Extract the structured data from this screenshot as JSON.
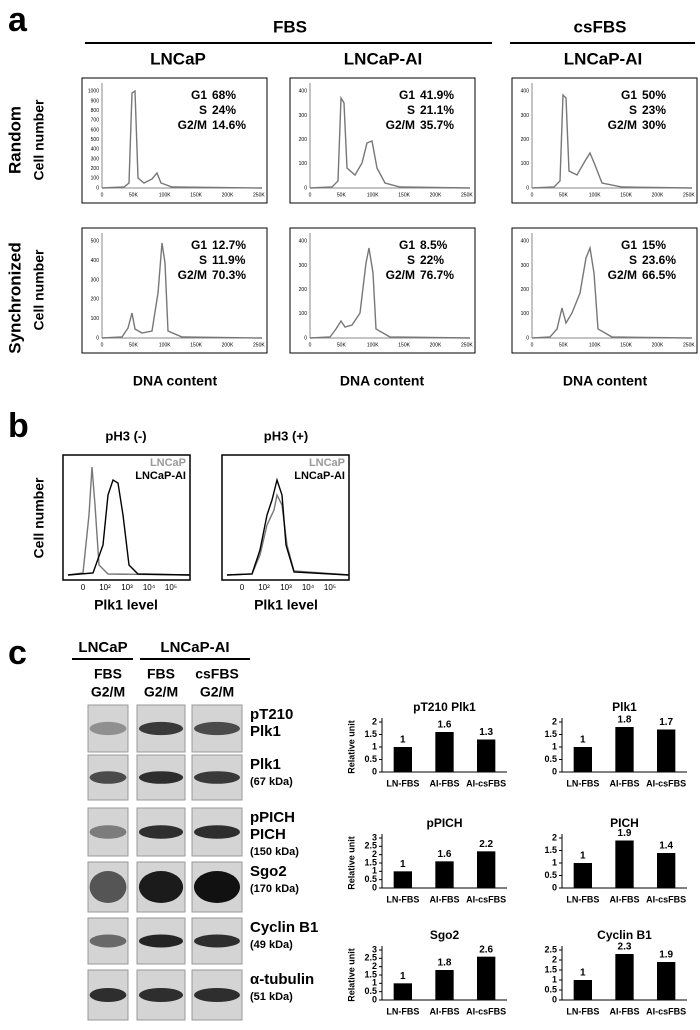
{
  "panel_a": {
    "letter": "a",
    "groups": [
      "FBS",
      "csFBS"
    ],
    "columns": [
      "LNCaP",
      "LNCaP-AI",
      "LNCaP-AI"
    ],
    "rows": [
      "Random",
      "Synchronized"
    ],
    "y_label": "Cell number",
    "x_label": "DNA content",
    "x_ticks": [
      "0",
      "50K",
      "100K",
      "150K",
      "200K",
      "250K"
    ],
    "plots": [
      {
        "y_ticks": [
          "0",
          "100",
          "200",
          "300",
          "400",
          "500",
          "600",
          "700",
          "800",
          "900",
          "1000"
        ],
        "stats": [
          {
            "phase": "G1",
            "value": "68%"
          },
          {
            "phase": "S",
            "value": "24%"
          },
          {
            "phase": "G2/M",
            "value": "14.6%"
          }
        ]
      },
      {
        "y_ticks": [
          "0",
          "100",
          "200",
          "300",
          "400"
        ],
        "stats": [
          {
            "phase": "G1",
            "value": "41.9%"
          },
          {
            "phase": "S",
            "value": "21.1%"
          },
          {
            "phase": "G2/M",
            "value": "35.7%"
          }
        ]
      },
      {
        "y_ticks": [
          "0",
          "100",
          "200",
          "300",
          "400"
        ],
        "stats": [
          {
            "phase": "G1",
            "value": "50%"
          },
          {
            "phase": "S",
            "value": "23%"
          },
          {
            "phase": "G2/M",
            "value": "30%"
          }
        ]
      },
      {
        "y_ticks": [
          "0",
          "100",
          "200",
          "300",
          "400",
          "500"
        ],
        "stats": [
          {
            "phase": "G1",
            "value": "12.7%"
          },
          {
            "phase": "S",
            "value": "11.9%"
          },
          {
            "phase": "G2/M",
            "value": "70.3%"
          }
        ]
      },
      {
        "y_ticks": [
          "0",
          "100",
          "200",
          "300",
          "400"
        ],
        "stats": [
          {
            "phase": "G1",
            "value": "8.5%"
          },
          {
            "phase": "S",
            "value": "22%"
          },
          {
            "phase": "G2/M",
            "value": "76.7%"
          }
        ]
      },
      {
        "y_ticks": [
          "0",
          "100",
          "200",
          "300",
          "400"
        ],
        "stats": [
          {
            "phase": "G1",
            "value": "15%"
          },
          {
            "phase": "S",
            "value": "23.6%"
          },
          {
            "phase": "G2/M",
            "value": "66.5%"
          }
        ]
      }
    ]
  },
  "panel_b": {
    "letter": "b",
    "titles": [
      "pH3 (-)",
      "pH3 (+)"
    ],
    "legend": [
      "LNCaP",
      "LNCaP-AI"
    ],
    "y_label": "Cell number",
    "x_label": "Plk1 level",
    "x_ticks": [
      "0",
      "10²",
      "10³",
      "10⁴",
      "10⁵"
    ]
  },
  "panel_c": {
    "letter": "c",
    "cell_lines": [
      "LNCaP",
      "LNCaP-AI"
    ],
    "lanes": [
      {
        "serum": "FBS",
        "phase": "G2/M"
      },
      {
        "serum": "FBS",
        "phase": "G2/M"
      },
      {
        "serum": "csFBS",
        "phase": "G2/M"
      }
    ],
    "blots": [
      {
        "lines": [
          "pT210",
          "Plk1"
        ]
      },
      {
        "lines": [
          "Plk1"
        ],
        "size": "(67 kDa)"
      },
      {
        "lines": [
          "pPICH",
          "PICH"
        ],
        "size": "(150 kDa)"
      },
      {
        "lines": [
          "Sgo2"
        ],
        "size": "(170 kDa)"
      },
      {
        "lines": [
          "Cyclin B1"
        ],
        "size": "(49 kDa)"
      },
      {
        "lines": [
          "α-tubulin"
        ],
        "size": "(51 kDa)"
      }
    ]
  },
  "chart_data": [
    {
      "type": "bar",
      "title": "pT210 Plk1",
      "y_label": "Relative unit",
      "categories": [
        "LN-FBS",
        "AI-FBS",
        "AI-csFBS"
      ],
      "values": [
        1,
        1.6,
        1.3
      ],
      "color": "#000000",
      "ylim": [
        0,
        2
      ],
      "yticks": [
        0,
        0.5,
        1,
        1.5,
        2
      ]
    },
    {
      "type": "bar",
      "title": "Plk1",
      "categories": [
        "LN-FBS",
        "AI-FBS",
        "AI-csFBS"
      ],
      "values": [
        1,
        1.8,
        1.7
      ],
      "color": "#000000",
      "ylim": [
        0,
        2
      ],
      "yticks": [
        0,
        0.5,
        1,
        1.5,
        2
      ]
    },
    {
      "type": "bar",
      "title": "pPICH",
      "y_label": "Relative unit",
      "categories": [
        "LN-FBS",
        "AI-FBS",
        "AI-csFBS"
      ],
      "values": [
        1,
        1.6,
        2.2
      ],
      "color": "#000000",
      "ylim": [
        0,
        3
      ],
      "yticks": [
        0,
        0.5,
        1,
        1.5,
        2,
        2.5,
        3
      ]
    },
    {
      "type": "bar",
      "title": "PICH",
      "categories": [
        "LN-FBS",
        "AI-FBS",
        "AI-csFBS"
      ],
      "values": [
        1,
        1.9,
        1.4
      ],
      "color": "#000000",
      "ylim": [
        0,
        2
      ],
      "yticks": [
        0,
        0.5,
        1,
        1.5,
        2
      ]
    },
    {
      "type": "bar",
      "title": "Sgo2",
      "y_label": "Relative unit",
      "categories": [
        "LN-FBS",
        "AI-FBS",
        "AI-csFBS"
      ],
      "values": [
        1,
        1.8,
        2.6
      ],
      "color": "#000000",
      "ylim": [
        0,
        3
      ],
      "yticks": [
        0,
        0.5,
        1,
        1.5,
        2,
        2.5,
        3
      ]
    },
    {
      "type": "bar",
      "title": "Cyclin B1",
      "categories": [
        "LN-FBS",
        "AI-FBS",
        "AI-csFBS"
      ],
      "values": [
        1,
        2.3,
        1.9
      ],
      "color": "#000000",
      "ylim": [
        0,
        2.5
      ],
      "yticks": [
        0,
        0.5,
        1,
        1.5,
        2,
        2.5
      ]
    }
  ]
}
